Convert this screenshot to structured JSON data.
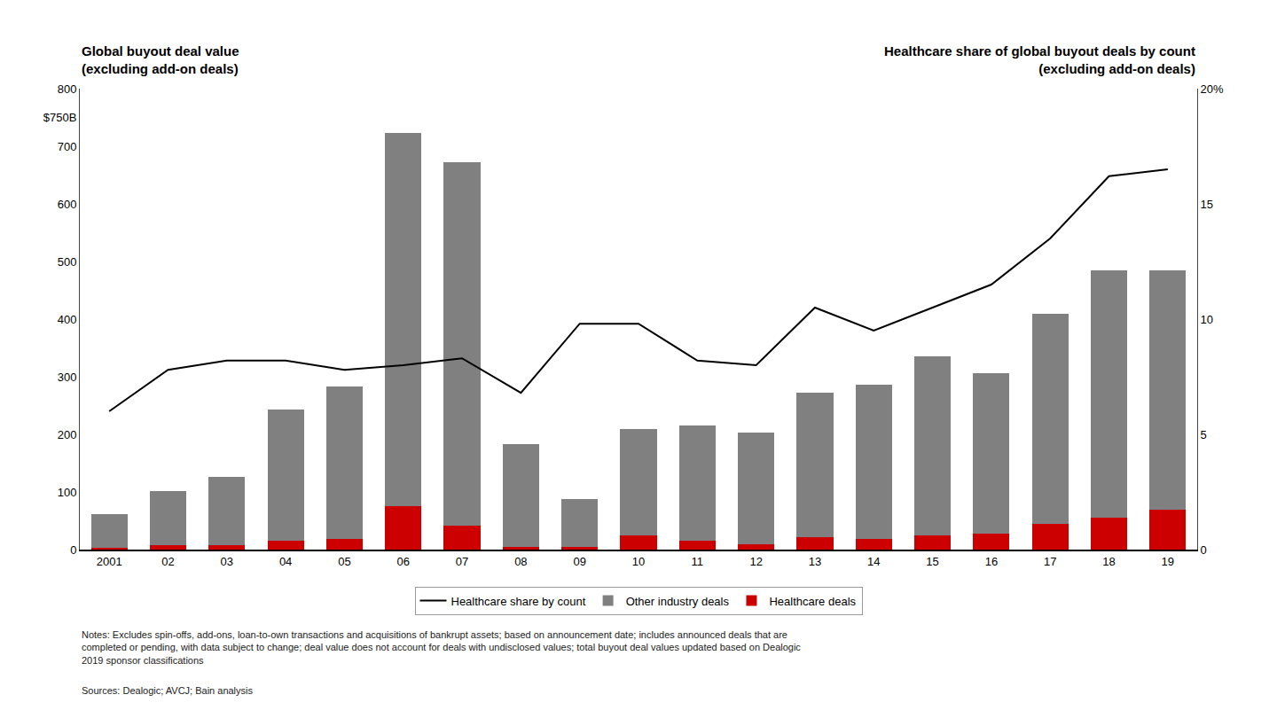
{
  "chart_data": {
    "type": "bar",
    "ylabel": "Global buyout deal value\n(excluding add-on deals)",
    "y2label": "Healthcare share of global buyout deals by count\n(excluding add-on deals)",
    "categories": [
      "2001",
      "02",
      "03",
      "04",
      "05",
      "06",
      "07",
      "08",
      "09",
      "10",
      "11",
      "12",
      "13",
      "14",
      "15",
      "16",
      "17",
      "18",
      "19"
    ],
    "series": [
      {
        "name": "Healthcare deals",
        "color": "#cc0000",
        "values": [
          3,
          8,
          8,
          15,
          18,
          75,
          42,
          5,
          5,
          25,
          15,
          10,
          22,
          18,
          25,
          28,
          45,
          55,
          70
        ]
      },
      {
        "name": "Other industry deals",
        "color": "#808080",
        "values": [
          58,
          93,
          118,
          228,
          265,
          648,
          630,
          178,
          83,
          185,
          200,
          193,
          250,
          268,
          310,
          278,
          365,
          430,
          415
        ]
      },
      {
        "name": "Healthcare share by count",
        "type": "line",
        "axis": "y2",
        "color": "#000000",
        "values": [
          6.0,
          7.8,
          8.2,
          8.2,
          7.8,
          8.0,
          8.3,
          6.8,
          9.8,
          9.8,
          8.2,
          8.0,
          10.5,
          9.5,
          10.5,
          11.5,
          13.5,
          16.2,
          16.5
        ]
      }
    ],
    "stacked": true,
    "ylim": [
      0,
      800
    ],
    "yticks": [
      0,
      100,
      200,
      300,
      400,
      500,
      600,
      700,
      {
        "value": 750,
        "label": "$750B"
      },
      800
    ],
    "y2lim": [
      0,
      20
    ],
    "y2ticks": [
      0,
      5,
      10,
      15,
      {
        "value": 20,
        "label": "20%"
      }
    ],
    "grid": false,
    "legend": "bottom",
    "annotations": [
      "Notes: Excludes spin-offs, add-ons, loan-to-own transactions and acquisitions of bankrupt assets; based on announcement date; includes announced deals that are\ncompleted or pending, with data subject to change; deal value does not account for deals with undisclosed values; total buyout deal values updated based on Dealogic\n2019 sponsor classifications",
      "Sources: Dealogic; AVCJ; Bain analysis"
    ]
  }
}
